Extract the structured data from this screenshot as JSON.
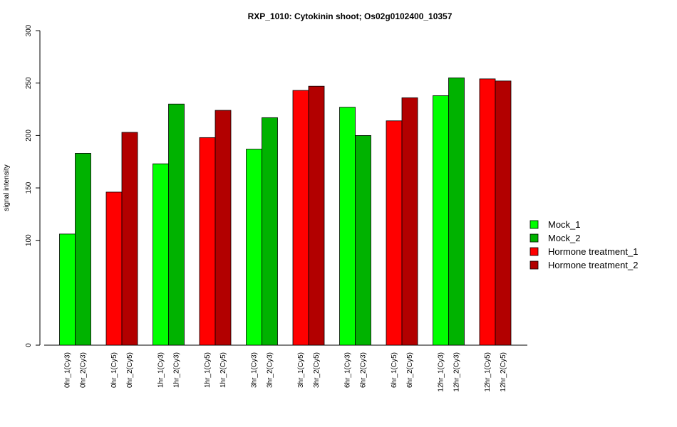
{
  "chart_data": {
    "type": "bar",
    "title": "RXP_1010: Cytokinin shoot; Os02g0102400_10357",
    "xlabel": "",
    "ylabel": "signal intensity",
    "ylim": [
      0,
      300
    ],
    "y_ticks": [
      0,
      100,
      150,
      200,
      250,
      300
    ],
    "grid": false,
    "legend_position": "right",
    "series": [
      {
        "name": "Mock_1",
        "color": "#00ff00"
      },
      {
        "name": "Mock_2",
        "color": "#00b200"
      },
      {
        "name": "Hormone treatment_1",
        "color": "#ff0000"
      },
      {
        "name": "Hormone treatment_2",
        "color": "#b20000"
      }
    ],
    "groups": [
      {
        "bars": [
          {
            "label": "0hr_1(Cy3)",
            "value": 106,
            "series": 0
          },
          {
            "label": "0hr_2(Cy3)",
            "value": 183,
            "series": 1
          }
        ]
      },
      {
        "bars": [
          {
            "label": "0hr_1(Cy5)",
            "value": 146,
            "series": 2
          },
          {
            "label": "0hr_2(Cy5)",
            "value": 203,
            "series": 3
          }
        ]
      },
      {
        "bars": [
          {
            "label": "1hr_1(Cy3)",
            "value": 173,
            "series": 0
          },
          {
            "label": "1hr_2(Cy3)",
            "value": 230,
            "series": 1
          }
        ]
      },
      {
        "bars": [
          {
            "label": "1hr_1(Cy5)",
            "value": 198,
            "series": 2
          },
          {
            "label": "1hr_2(Cy5)",
            "value": 224,
            "series": 3
          }
        ]
      },
      {
        "bars": [
          {
            "label": "3hr_1(Cy3)",
            "value": 187,
            "series": 0
          },
          {
            "label": "3hr_2(Cy3)",
            "value": 217,
            "series": 1
          }
        ]
      },
      {
        "bars": [
          {
            "label": "3hr_1(Cy5)",
            "value": 243,
            "series": 2
          },
          {
            "label": "3hr_2(Cy5)",
            "value": 247,
            "series": 3
          }
        ]
      },
      {
        "bars": [
          {
            "label": "6hr_1(Cy3)",
            "value": 227,
            "series": 0
          },
          {
            "label": "6hr_2(Cy3)",
            "value": 200,
            "series": 1
          }
        ]
      },
      {
        "bars": [
          {
            "label": "6hr_1(Cy5)",
            "value": 214,
            "series": 2
          },
          {
            "label": "6hr_2(Cy5)",
            "value": 236,
            "series": 3
          }
        ]
      },
      {
        "bars": [
          {
            "label": "12hr_1(Cy3)",
            "value": 238,
            "series": 0
          },
          {
            "label": "12hr_2(Cy3)",
            "value": 255,
            "series": 1
          }
        ]
      },
      {
        "bars": [
          {
            "label": "12hr_1(Cy5)",
            "value": 254,
            "series": 2
          },
          {
            "label": "12hr_2(Cy5)",
            "value": 252,
            "series": 3
          }
        ]
      }
    ]
  }
}
